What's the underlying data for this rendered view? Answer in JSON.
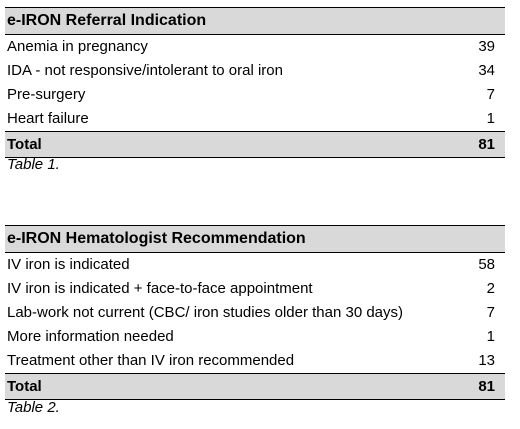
{
  "table1": {
    "header": "e-IRON Referral Indication",
    "rows": [
      {
        "label": "Anemia in pregnancy",
        "value": "39"
      },
      {
        "label": "IDA - not responsive/intolerant to oral iron",
        "value": "34"
      },
      {
        "label": "Pre-surgery",
        "value": "7"
      },
      {
        "label": "Heart failure",
        "value": "1"
      }
    ],
    "total_label": "Total",
    "total_value": "81",
    "caption": "Table 1."
  },
  "table2": {
    "header": "e-IRON Hematologist Recommendation",
    "rows": [
      {
        "label": "IV iron is indicated",
        "value": "58"
      },
      {
        "label": "IV iron is indicated + face-to-face appointment",
        "value": "2"
      },
      {
        "label": "Lab-work not current (CBC/ iron studies older than 30 days)",
        "value": "7"
      },
      {
        "label": "More information needed",
        "value": "1"
      },
      {
        "label": "Treatment other than IV iron recommended",
        "value": "13"
      }
    ],
    "total_label": "Total",
    "total_value": "81",
    "caption": "Table 2."
  }
}
